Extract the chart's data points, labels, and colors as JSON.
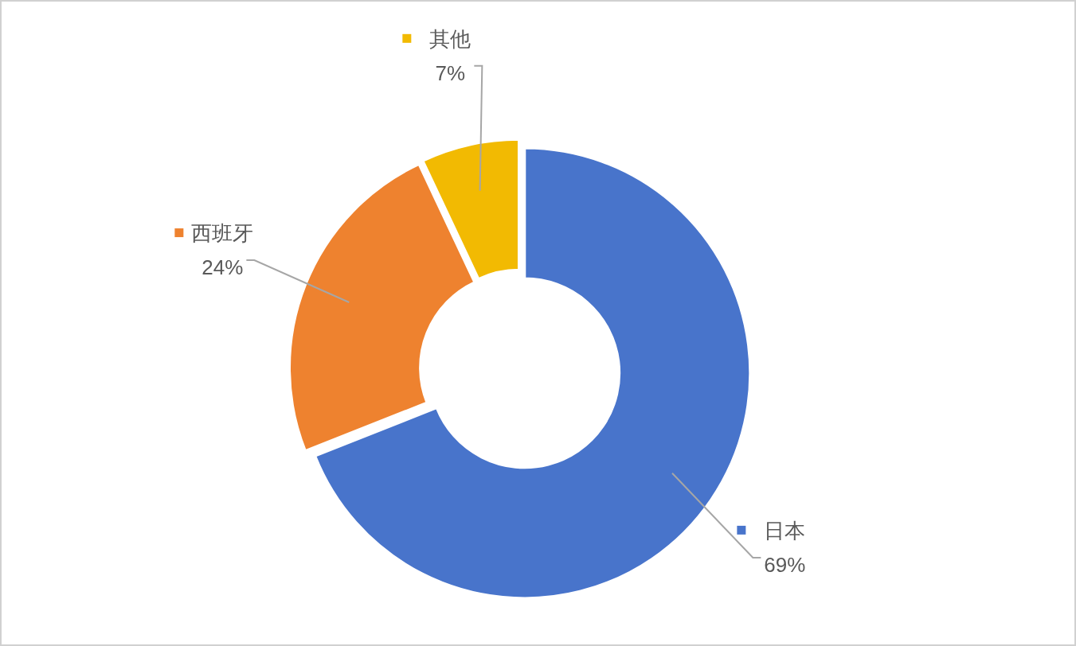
{
  "chart_data": {
    "type": "donut",
    "categories": [
      "日本",
      "西班牙",
      "其他"
    ],
    "values": [
      69,
      24,
      7
    ],
    "colors": [
      "#4874cb",
      "#ee822f",
      "#f2ba02"
    ],
    "value_labels": [
      "69%",
      "24%",
      "7%"
    ],
    "legend": "top left"
  }
}
